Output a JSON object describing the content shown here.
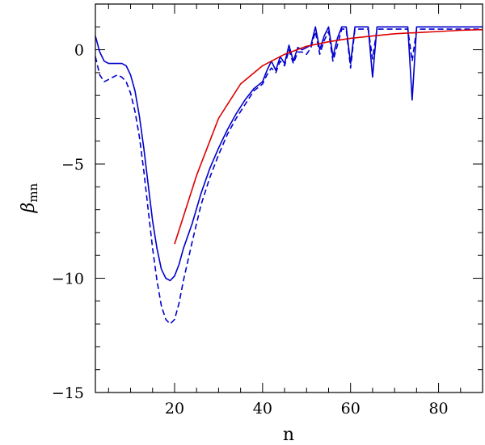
{
  "chart_data": {
    "type": "line",
    "title": "",
    "xlabel": "n",
    "ylabel": {
      "symbol": "β",
      "subscript": "mn"
    },
    "xlim": [
      2,
      90
    ],
    "ylim": [
      -15,
      2
    ],
    "xticks_major": [
      20,
      40,
      60,
      80
    ],
    "xticks_minor_step": 5,
    "yticks_major": [
      0,
      -5,
      -10,
      -15
    ],
    "yticks_minor_step": 1,
    "grid": false,
    "legend": "none",
    "series": [
      {
        "style": "solid",
        "color": "#0000cc",
        "x": [
          2,
          3,
          4,
          5,
          6,
          7,
          8,
          9,
          10,
          11,
          12,
          13,
          14,
          15,
          16,
          17,
          18,
          19,
          20,
          21,
          22,
          24,
          26,
          28,
          30,
          32,
          34,
          36,
          38,
          40,
          41,
          42,
          43,
          44,
          45,
          46,
          47,
          48,
          49,
          50,
          51,
          52,
          53,
          54,
          55,
          56,
          57,
          58,
          59,
          60,
          61,
          62,
          63,
          64,
          65,
          66,
          67,
          68,
          69,
          70,
          71,
          72,
          73,
          74,
          75,
          76,
          78,
          80,
          82,
          84,
          86,
          88,
          90
        ],
        "y": [
          0.6,
          -0.1,
          -0.5,
          -0.6,
          -0.6,
          -0.6,
          -0.6,
          -0.7,
          -1.1,
          -1.8,
          -2.9,
          -4.3,
          -5.9,
          -7.5,
          -8.7,
          -9.6,
          -10.0,
          -10.1,
          -9.9,
          -9.4,
          -8.7,
          -7.6,
          -6.3,
          -5.2,
          -4.3,
          -3.5,
          -2.8,
          -2.2,
          -1.7,
          -1.4,
          -0.9,
          -0.5,
          -0.9,
          -0.3,
          -0.6,
          0.2,
          -0.5,
          0.1,
          0.0,
          0.1,
          0.2,
          1.0,
          0.0,
          0.6,
          1.0,
          -0.3,
          0.5,
          1.0,
          1.0,
          -0.6,
          1.0,
          1.0,
          1.0,
          1.0,
          -1.2,
          1.0,
          1.0,
          1.0,
          1.0,
          1.0,
          1.0,
          1.0,
          1.0,
          -2.2,
          1.0,
          1.0,
          1.0,
          1.0,
          1.0,
          1.0,
          1.0,
          1.0,
          1.0
        ]
      },
      {
        "style": "dashed",
        "color": "#0000cc",
        "x": [
          2,
          3,
          4,
          5,
          6,
          7,
          8,
          9,
          10,
          11,
          12,
          13,
          14,
          15,
          16,
          17,
          18,
          19,
          20,
          21,
          22,
          24,
          26,
          28,
          30,
          32,
          34,
          36,
          38,
          40,
          41,
          42,
          43,
          44,
          45,
          46,
          47,
          48,
          49,
          50,
          51,
          52,
          53,
          54,
          55,
          56,
          57,
          58,
          59,
          60,
          61,
          62,
          63,
          64,
          65,
          66,
          67,
          68,
          69,
          70,
          71,
          72,
          73,
          74,
          75,
          76,
          78,
          80,
          82,
          84,
          86,
          88,
          90
        ],
        "y": [
          -0.3,
          -1.1,
          -1.4,
          -1.3,
          -1.2,
          -1.1,
          -1.2,
          -1.4,
          -1.9,
          -2.7,
          -3.8,
          -5.3,
          -7.0,
          -8.7,
          -10.1,
          -11.2,
          -11.8,
          -12.0,
          -11.8,
          -11.1,
          -10.1,
          -8.4,
          -6.8,
          -5.6,
          -4.6,
          -3.7,
          -3.0,
          -2.4,
          -1.8,
          -1.5,
          -1.1,
          -0.8,
          -1.0,
          -0.5,
          -0.7,
          0.0,
          -0.6,
          -0.1,
          -0.1,
          -0.2,
          0.1,
          0.8,
          -0.2,
          0.4,
          0.8,
          -0.5,
          0.2,
          0.9,
          0.9,
          -0.8,
          0.9,
          0.9,
          0.9,
          0.9,
          -0.4,
          0.9,
          0.9,
          0.9,
          0.9,
          0.9,
          0.9,
          0.9,
          0.9,
          -0.5,
          0.9,
          0.9,
          0.9,
          0.9,
          0.9,
          0.9,
          0.9,
          0.9,
          0.9
        ]
      },
      {
        "style": "solid",
        "color": "#dd0000",
        "x": [
          20,
          22,
          25,
          30,
          35,
          40,
          45,
          50,
          55,
          60,
          65,
          70,
          75,
          80,
          85,
          90
        ],
        "y": [
          -8.5,
          -7.3,
          -5.5,
          -3.0,
          -1.5,
          -0.7,
          -0.2,
          0.15,
          0.35,
          0.5,
          0.6,
          0.7,
          0.75,
          0.8,
          0.85,
          0.88
        ]
      }
    ]
  }
}
